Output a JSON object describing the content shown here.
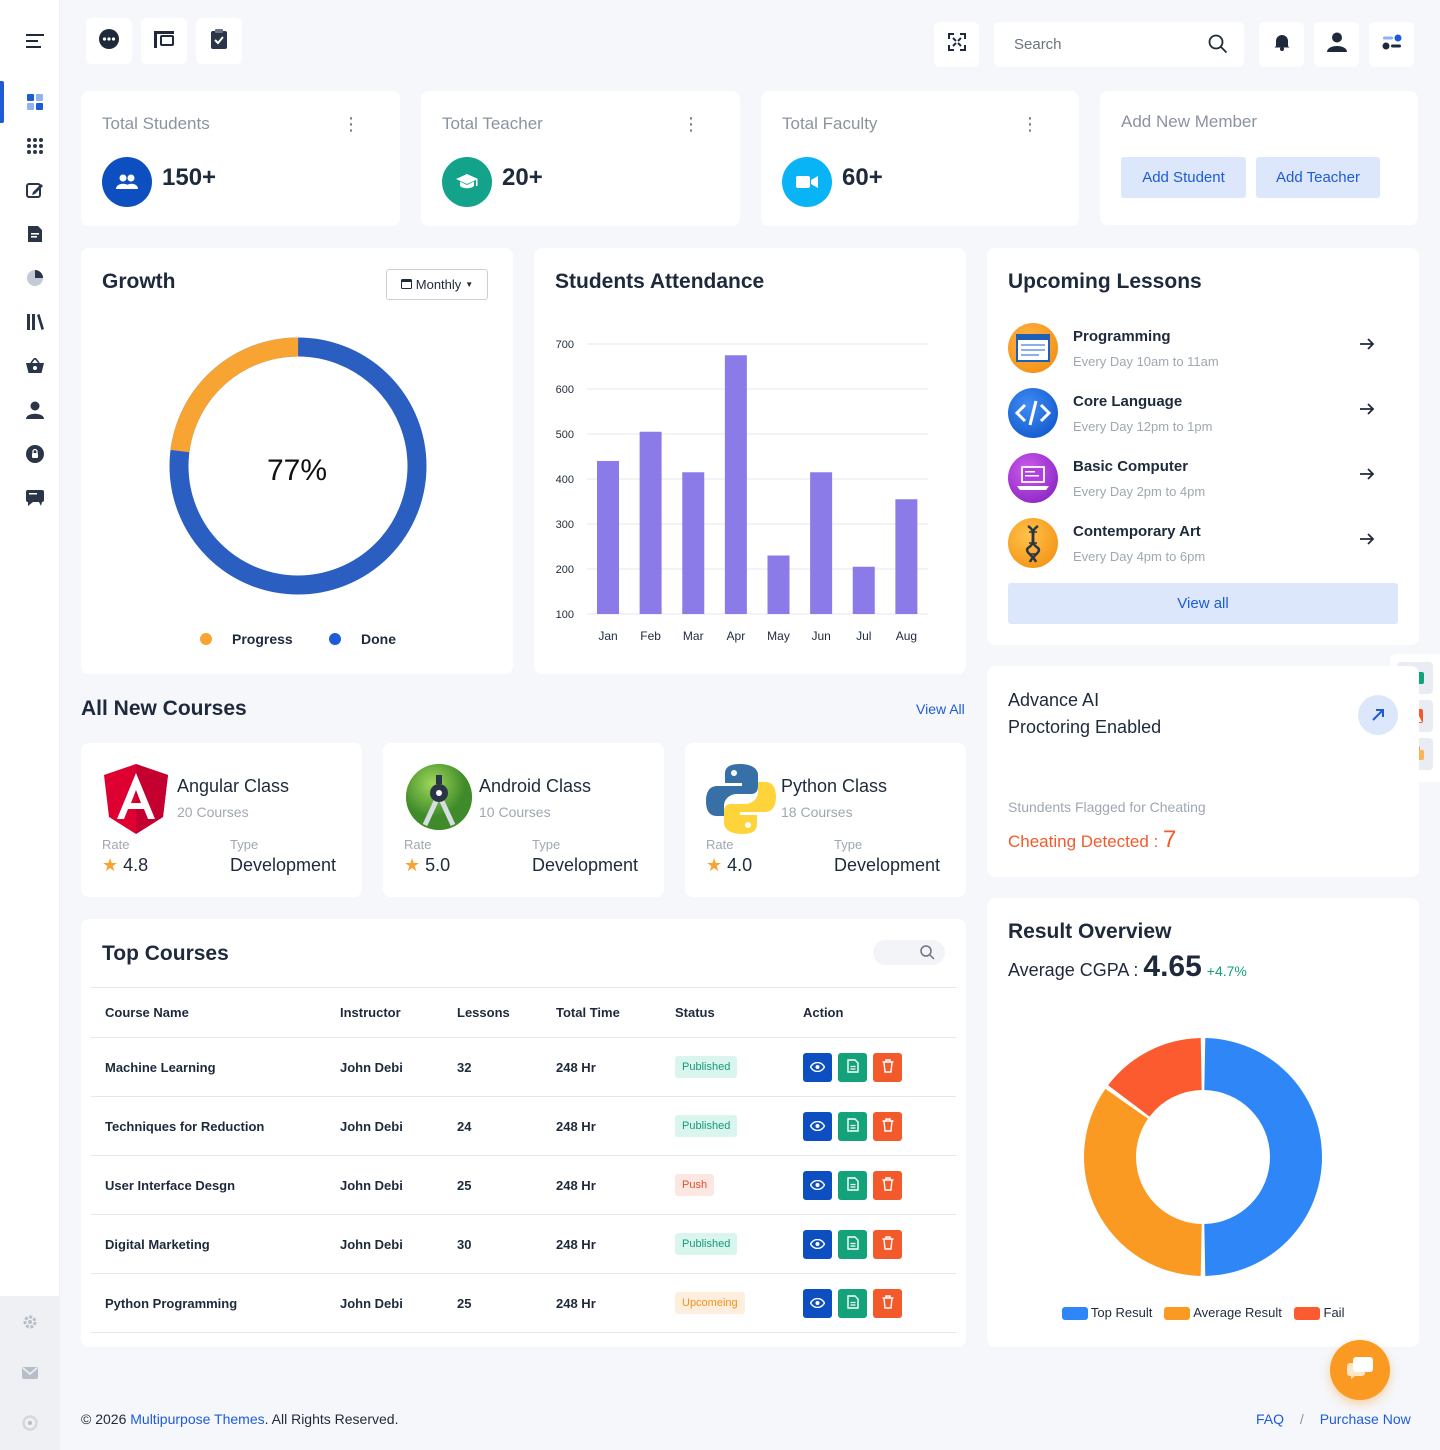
{
  "search": {
    "placeholder": "Search"
  },
  "stats": [
    {
      "title": "Total Students",
      "value": "150+",
      "color": "#0d4fc0",
      "icon": "users-icon"
    },
    {
      "title": "Total Teacher",
      "value": "20+",
      "color": "#13a28a",
      "icon": "graduation-cap-icon"
    },
    {
      "title": "Total Faculty",
      "value": "60+",
      "color": "#08b4f5",
      "icon": "video-camera-icon"
    }
  ],
  "add_member": {
    "title": "Add New Member",
    "add_student": "Add Student",
    "add_teacher": "Add Teacher"
  },
  "growth": {
    "title": "Growth",
    "period": "Monthly",
    "percent_label": "77%",
    "legend_progress": "Progress",
    "legend_done": "Done",
    "colors": {
      "progress": "#f7a432",
      "done": "#2a5fc1"
    }
  },
  "chart_data": {
    "type": "bar",
    "title": "Students Attendance",
    "categories": [
      "Jan",
      "Feb",
      "Mar",
      "Apr",
      "May",
      "Jun",
      "Jul",
      "Aug"
    ],
    "values": [
      440,
      505,
      415,
      675,
      230,
      415,
      205,
      355
    ],
    "ylim": [
      100,
      700
    ],
    "yticks": [
      100,
      200,
      300,
      400,
      500,
      600,
      700
    ],
    "grid": true,
    "color": "#8a7be8"
  },
  "upcoming": {
    "title": "Upcoming Lessons",
    "items": [
      {
        "name": "Programming",
        "time": "Every Day 10am to 11am",
        "icon": "window-icon"
      },
      {
        "name": "Core Language",
        "time": "Every Day 12pm to 1pm",
        "icon": "code-icon"
      },
      {
        "name": "Basic Computer",
        "time": "Every Day 2pm to 4pm",
        "icon": "laptop-icon"
      },
      {
        "name": "Contemporary Art",
        "time": "Every Day 4pm to 6pm",
        "icon": "dna-icon"
      }
    ],
    "view_all": "View all"
  },
  "courses": {
    "title": "All New Courses",
    "view_all": "View All",
    "rate_label": "Rate",
    "type_label": "Type",
    "items": [
      {
        "name": "Angular Class",
        "count": "20 Courses",
        "rate": "4.8",
        "type": "Development",
        "icon": "angular-logo-icon"
      },
      {
        "name": "Android Class",
        "count": "10 Courses",
        "rate": "5.0",
        "type": "Development",
        "icon": "android-logo-icon"
      },
      {
        "name": "Python Class",
        "count": "18 Courses",
        "rate": "4.0",
        "type": "Development",
        "icon": "python-logo-icon"
      }
    ]
  },
  "proctor": {
    "line1": "Advance AI",
    "line2": "Proctoring Enabled",
    "flag_label": "Stundents Flagged for Cheating",
    "detected_label": "Cheating Detected :",
    "detected_value": "7"
  },
  "top_courses": {
    "title": "Top Courses",
    "columns": [
      "Course Name",
      "Instructor",
      "Lessons",
      "Total Time",
      "Status",
      "Action"
    ],
    "rows": [
      {
        "name": "Machine Learning",
        "instructor": "John Debi",
        "lessons": "32",
        "time": "248 Hr",
        "status": "Published",
        "kind": "pub"
      },
      {
        "name": "Techniques for Reduction",
        "instructor": "John Debi",
        "lessons": "24",
        "time": "248 Hr",
        "status": "Published",
        "kind": "pub"
      },
      {
        "name": "User Interface Desgn",
        "instructor": "John Debi",
        "lessons": "25",
        "time": "248 Hr",
        "status": "Push",
        "kind": "push"
      },
      {
        "name": "Digital Marketing",
        "instructor": "John Debi",
        "lessons": "30",
        "time": "248 Hr",
        "status": "Published",
        "kind": "pub"
      },
      {
        "name": "Python Programming",
        "instructor": "John Debi",
        "lessons": "25",
        "time": "248 Hr",
        "status": "Upcomeing",
        "kind": "up"
      }
    ]
  },
  "result": {
    "title": "Result Overview",
    "cgpa_label": "Average CGPA :",
    "cgpa_value": "4.65",
    "cgpa_change": "+4.7%",
    "segments": [
      {
        "name": "Top Result",
        "value": 50,
        "color": "#2f86f6"
      },
      {
        "name": "Average Result",
        "value": 35,
        "color": "#fb9a22"
      },
      {
        "name": "Fail",
        "value": 15,
        "color": "#fc5b30"
      }
    ]
  },
  "footer": {
    "copyright_prefix": "© 2026",
    "brand": "Multipurpose Themes",
    "copyright_suffix": ". All Rights Reserved.",
    "faq": "FAQ",
    "separator": "/",
    "purchase": "Purchase Now"
  }
}
